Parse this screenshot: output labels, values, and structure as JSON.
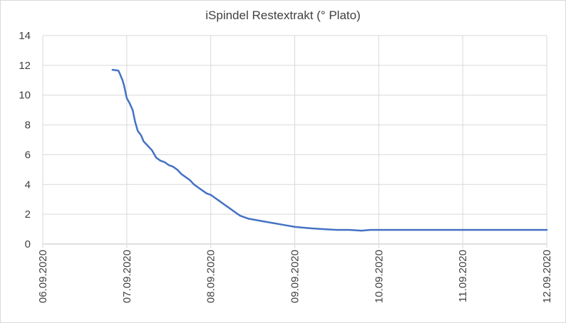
{
  "chart_data": {
    "type": "line",
    "title": "iSpindel Restextrakt (° Plato)",
    "xlabel": "",
    "ylabel": "",
    "ylim": [
      0,
      14
    ],
    "yticks": [
      0,
      2,
      4,
      6,
      8,
      10,
      12,
      14
    ],
    "xticks": [
      "06.09.2020",
      "07.09.2020",
      "08.09.2020",
      "09.09.2020",
      "10.09.2020",
      "11.09.2020",
      "12.09.2020"
    ],
    "xlim": [
      "06.09.2020",
      "12.09.2020"
    ],
    "grid": true,
    "legend": "none",
    "line_color": "#4472c4",
    "series": [
      {
        "x": [
          0.83,
          0.9,
          0.92,
          0.95,
          0.97,
          1.0,
          1.03,
          1.07,
          1.1,
          1.13,
          1.17,
          1.2,
          1.25,
          1.3,
          1.35,
          1.4,
          1.45,
          1.5,
          1.55,
          1.6,
          1.65,
          1.7,
          1.75,
          1.8,
          1.85,
          1.9,
          1.95,
          2.0,
          2.05,
          2.1,
          2.15,
          2.2,
          2.25,
          2.3,
          2.35,
          2.4,
          2.45,
          2.5,
          2.55,
          2.6,
          2.65,
          2.7,
          2.8,
          2.9,
          3.0,
          3.1,
          3.2,
          3.35,
          3.5,
          3.65,
          3.8,
          3.9,
          4.0,
          4.2,
          4.4,
          4.6,
          4.8,
          5.0,
          5.5,
          6.0
        ],
        "values": [
          11.7,
          11.65,
          11.4,
          11.0,
          10.6,
          9.8,
          9.5,
          9.0,
          8.2,
          7.6,
          7.3,
          6.9,
          6.6,
          6.3,
          5.8,
          5.6,
          5.5,
          5.3,
          5.2,
          5.0,
          4.7,
          4.5,
          4.3,
          4.0,
          3.8,
          3.6,
          3.4,
          3.3,
          3.1,
          2.9,
          2.7,
          2.5,
          2.3,
          2.1,
          1.9,
          1.8,
          1.7,
          1.65,
          1.6,
          1.55,
          1.5,
          1.45,
          1.35,
          1.25,
          1.15,
          1.1,
          1.05,
          1.0,
          0.95,
          0.95,
          0.9,
          0.95,
          0.95,
          0.95,
          0.95,
          0.95,
          0.95,
          0.95,
          0.95,
          0.95
        ]
      }
    ]
  }
}
